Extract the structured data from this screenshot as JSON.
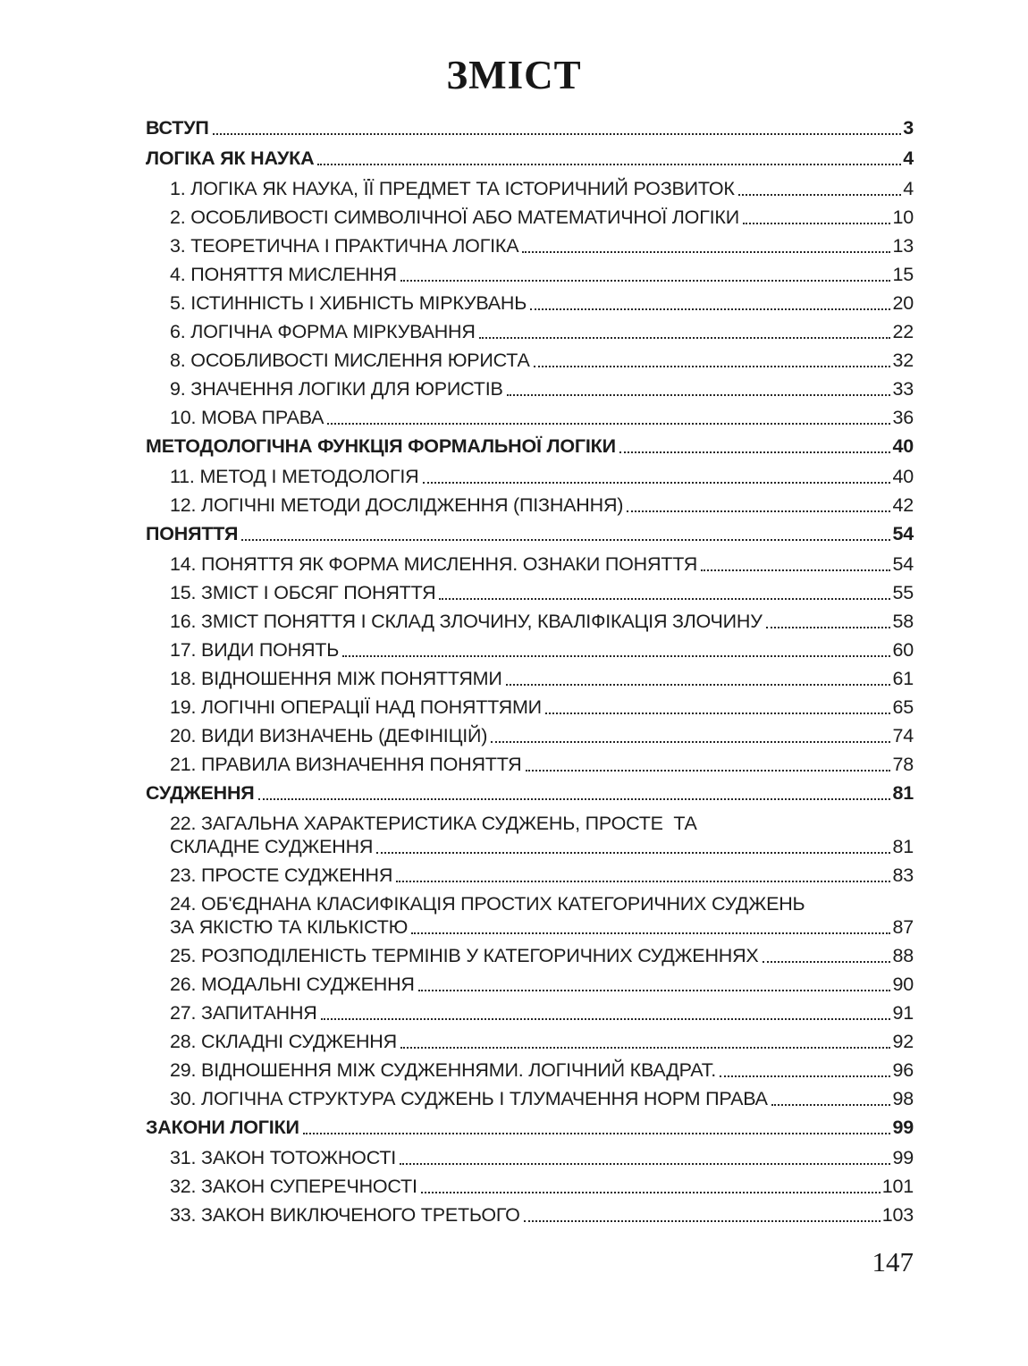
{
  "page": {
    "title": "ЗМІСТ",
    "page_number": "147",
    "background_color": "#ffffff",
    "text_color": "#1c1c1c"
  },
  "toc": {
    "entries": [
      {
        "bold": true,
        "label": "ВСТУП",
        "page": "3"
      },
      {
        "bold": true,
        "label": "ЛОГІКА ЯК НАУКА",
        "page": "4"
      },
      {
        "bold": false,
        "label": "1. ЛОГІКА ЯК НАУКА, ЇЇ ПРЕДМЕТ ТА ІСТОРИЧНИЙ РОЗВИТОК",
        "page": "4"
      },
      {
        "bold": false,
        "label": "2. ОСОБЛИВОСТІ СИМВОЛІЧНОЇ АБО МАТЕМАТИЧНОЇ ЛОГІКИ",
        "page": "10"
      },
      {
        "bold": false,
        "label": "3. ТЕОРЕТИЧНА І ПРАКТИЧНА ЛОГІКА",
        "page": "13"
      },
      {
        "bold": false,
        "label": "4. ПОНЯТТЯ МИСЛЕННЯ",
        "page": "15"
      },
      {
        "bold": false,
        "label": "5. ІСТИННІСТЬ І ХИБНІСТЬ МІРКУВАНЬ",
        "page": "20"
      },
      {
        "bold": false,
        "label": "6. ЛОГІЧНА ФОРМА МІРКУВАННЯ",
        "page": "22"
      },
      {
        "bold": false,
        "label": "8. ОСОБЛИВОСТІ МИСЛЕННЯ ЮРИСТА",
        "page": "32"
      },
      {
        "bold": false,
        "label": "9. ЗНАЧЕННЯ ЛОГІКИ ДЛЯ ЮРИСТІВ",
        "page": "33"
      },
      {
        "bold": false,
        "label": "10. МОВА ПРАВА",
        "page": "36"
      },
      {
        "bold": true,
        "label": "МЕТОДОЛОГІЧНА ФУНКЦІЯ ФОРМАЛЬНОЇ ЛОГІКИ",
        "page": "40"
      },
      {
        "bold": false,
        "label": "11. МЕТОД І МЕТОДОЛОГІЯ",
        "page": "40"
      },
      {
        "bold": false,
        "label": "12. ЛОГІЧНІ МЕТОДИ ДОСЛІДЖЕННЯ (ПІЗНАННЯ)",
        "page": "42"
      },
      {
        "bold": true,
        "label": "ПОНЯТТЯ",
        "page": "54"
      },
      {
        "bold": false,
        "label": "14. ПОНЯТТЯ ЯК ФОРМА МИСЛЕННЯ. ОЗНАКИ ПОНЯТТЯ",
        "page": "54"
      },
      {
        "bold": false,
        "label": "15. ЗМІСТ І ОБСЯГ ПОНЯТТЯ",
        "page": "55"
      },
      {
        "bold": false,
        "label": "16. ЗМІСТ ПОНЯТТЯ І СКЛАД ЗЛОЧИНУ, КВАЛІФІКАЦІЯ ЗЛОЧИНУ",
        "page": "58"
      },
      {
        "bold": false,
        "label": "17. ВИДИ ПОНЯТЬ",
        "page": "60"
      },
      {
        "bold": false,
        "label": "18. ВІДНОШЕННЯ МІЖ ПОНЯТТЯМИ",
        "page": "61"
      },
      {
        "bold": false,
        "label": "19. ЛОГІЧНІ ОПЕРАЦІЇ НАД ПОНЯТТЯМИ",
        "page": "65"
      },
      {
        "bold": false,
        "label": "20. ВИДИ ВИЗНАЧЕНЬ (ДЕФІНІЦІЙ)",
        "page": "74"
      },
      {
        "bold": false,
        "label": "21. ПРАВИЛА ВИЗНАЧЕННЯ ПОНЯТТЯ",
        "page": "78"
      },
      {
        "bold": true,
        "label": "СУДЖЕННЯ",
        "page": "81"
      },
      {
        "bold": false,
        "line1": "22. ЗАГАЛЬНА ХАРАКТЕРИСТИКА СУДЖЕНЬ, ПРОСТЕ  ТА",
        "label": "СКЛАДНЕ СУДЖЕННЯ",
        "page": "81"
      },
      {
        "bold": false,
        "label": "23. ПРОСТЕ СУДЖЕННЯ",
        "page": "83"
      },
      {
        "bold": false,
        "line1": "24. ОБ'ЄДНАНА КЛАСИФІКАЦІЯ ПРОСТИХ КАТЕГОРИЧНИХ СУДЖЕНЬ",
        "label": "ЗА ЯКІСТЮ ТА КІЛЬКІСТЮ",
        "page": "87"
      },
      {
        "bold": false,
        "label": "25. РОЗПОДІЛЕНІСТЬ ТЕРМІНІВ У КАТЕГОРИЧНИХ СУДЖЕННЯХ",
        "page": "88"
      },
      {
        "bold": false,
        "label": "26. МОДАЛЬНІ СУДЖЕННЯ",
        "page": "90"
      },
      {
        "bold": false,
        "label": "27. ЗАПИТАННЯ",
        "page": "91"
      },
      {
        "bold": false,
        "label": "28. СКЛАДНІ СУДЖЕННЯ",
        "page": "92"
      },
      {
        "bold": false,
        "label": "29. ВІДНОШЕННЯ МІЖ СУДЖЕННЯМИ. ЛОГІЧНИЙ КВАДРАТ.",
        "page": "96"
      },
      {
        "bold": false,
        "label": "30. ЛОГІЧНА СТРУКТУРА СУДЖЕНЬ І ТЛУМАЧЕННЯ НОРМ ПРАВА",
        "page": "98"
      },
      {
        "bold": true,
        "label": "ЗАКОНИ ЛОГІКИ",
        "page": "99"
      },
      {
        "bold": false,
        "label": "31. ЗАКОН ТОТОЖНОСТІ",
        "page": "99"
      },
      {
        "bold": false,
        "label": "32. ЗАКОН СУПЕРЕЧНОСТІ",
        "page": "101"
      },
      {
        "bold": false,
        "label": "33. ЗАКОН ВИКЛЮЧЕНОГО ТРЕТЬОГО",
        "page": "103"
      }
    ]
  }
}
